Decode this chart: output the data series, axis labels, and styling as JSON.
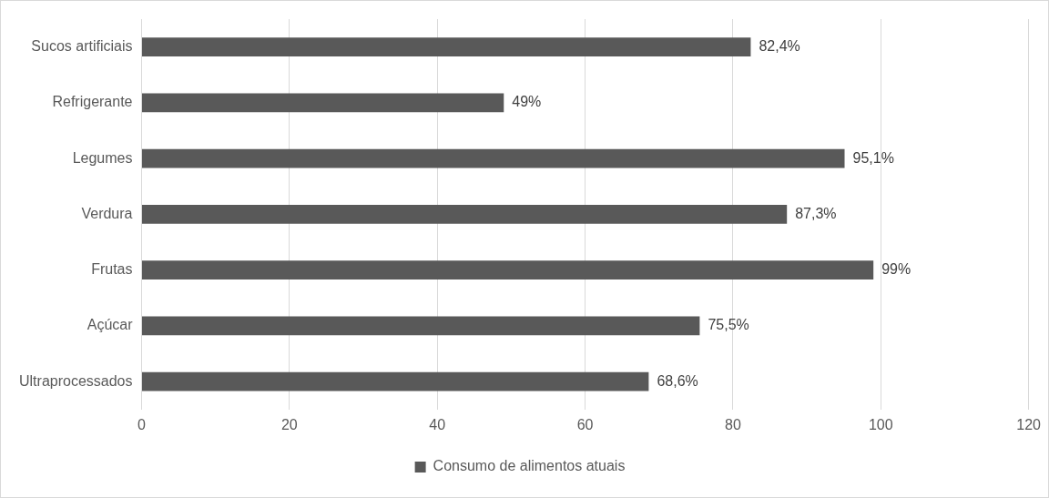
{
  "chart_data": {
    "type": "bar",
    "orientation": "horizontal",
    "categories": [
      "Sucos artificiais",
      "Refrigerante",
      "Legumes",
      "Verdura",
      "Frutas",
      "Açúcar",
      "Ultraprocessados"
    ],
    "series": [
      {
        "name": "Consumo de alimentos atuais",
        "color": "#595959",
        "values": [
          82.4,
          49,
          95.1,
          87.3,
          99,
          75.5,
          68.6
        ],
        "value_labels": [
          "82,4%",
          "49%",
          "95,1%",
          "87,3%",
          "99%",
          "75,5%",
          "68,6%"
        ]
      }
    ],
    "xlim": [
      0,
      120
    ],
    "xticks": [
      0,
      20,
      40,
      60,
      80,
      100,
      120
    ],
    "grid": "x",
    "legend": "bottom"
  }
}
